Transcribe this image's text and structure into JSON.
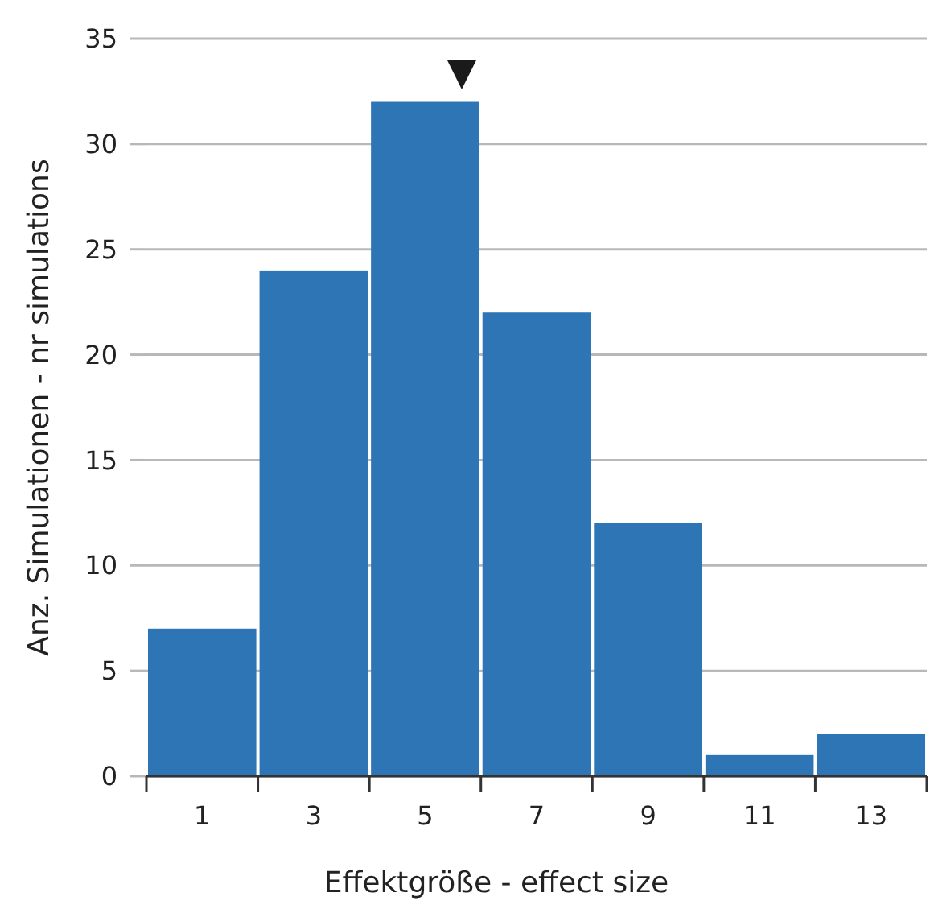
{
  "chart_data": {
    "type": "histogram",
    "xlabel": "Effektgröße - effect size",
    "ylabel": "Anz. Simulationen - nr simulations",
    "bins": [
      0,
      2,
      4,
      6,
      8,
      10,
      12,
      14
    ],
    "values": [
      7,
      24,
      32,
      22,
      12,
      1,
      2
    ],
    "color": "#2e75b6",
    "xlim": [
      0,
      14
    ],
    "xticks": [
      {
        "value": 0,
        "label": null
      },
      {
        "value": 1,
        "label": "1"
      },
      {
        "value": 2,
        "label": null
      },
      {
        "value": 3,
        "label": "3"
      },
      {
        "value": 4,
        "label": null
      },
      {
        "value": 5,
        "label": "5"
      },
      {
        "value": 6,
        "label": null
      },
      {
        "value": 7,
        "label": "7"
      },
      {
        "value": 8,
        "label": null
      },
      {
        "value": 9,
        "label": "9"
      },
      {
        "value": 10,
        "label": null
      },
      {
        "value": 11,
        "label": "11"
      },
      {
        "value": 12,
        "label": null
      },
      {
        "value": 13,
        "label": "13"
      },
      {
        "value": 14,
        "label": null
      }
    ],
    "ylim": [
      0,
      35
    ],
    "yticks": [
      0,
      5,
      10,
      15,
      20,
      25,
      30,
      35
    ],
    "grid": "y",
    "annotations": [
      "▼"
    ]
  }
}
